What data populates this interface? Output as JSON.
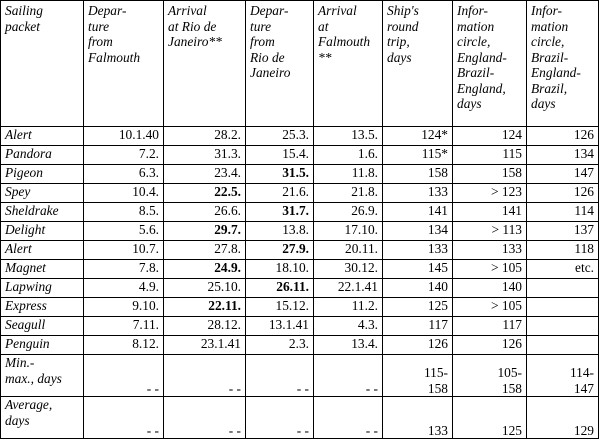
{
  "headers": [
    "Sailing packet",
    "Depar-ture from Falmouth",
    "Arrival at Rio de Janeiro**",
    "Depar-ture from Rio de Janeiro",
    "Arrival at Falmouth **",
    "Ship's round trip, days",
    "Infor-mation circle, England-Brazil-England, days",
    "Infor-mation circle, Brazil-England-Brazil, days"
  ],
  "header_lines": [
    [
      "Sailing",
      "packet"
    ],
    [
      "Depar-",
      "ture",
      "from",
      "Falmouth"
    ],
    [
      "Arrival",
      "at Rio de",
      "Janeiro**"
    ],
    [
      "Depar-",
      "ture",
      "from",
      "Rio de",
      "Janeiro"
    ],
    [
      "Arrival",
      "at",
      "Falmouth",
      "**"
    ],
    [
      "Ship's",
      "round",
      "trip,",
      "days"
    ],
    [
      "Infor-",
      "mation",
      "circle,",
      "England-",
      "Brazil-",
      "England,",
      "days"
    ],
    [
      "Infor-",
      "mation",
      "circle,",
      "Brazil-",
      "England-",
      "Brazil,",
      "days"
    ]
  ],
  "rows": [
    {
      "packet": "Alert",
      "dep_falmouth": "10.1.40",
      "arr_rio": "28.2.",
      "arr_rio_bold": false,
      "dep_rio": "25.3.",
      "dep_rio_bold": false,
      "arr_falmouth": "13.5.",
      "round_trip": "124*",
      "circle_ebe": "124",
      "circle_beb": "126"
    },
    {
      "packet": "Pandora",
      "dep_falmouth": "7.2.",
      "arr_rio": "31.3.",
      "arr_rio_bold": false,
      "dep_rio": "15.4.",
      "dep_rio_bold": false,
      "arr_falmouth": "1.6.",
      "round_trip": "115*",
      "circle_ebe": "115",
      "circle_beb": "134"
    },
    {
      "packet": "Pigeon",
      "dep_falmouth": "6.3.",
      "arr_rio": "23.4.",
      "arr_rio_bold": false,
      "dep_rio": "31.5.",
      "dep_rio_bold": true,
      "arr_falmouth": "11.8.",
      "round_trip": "158",
      "circle_ebe": "158",
      "circle_beb": "147"
    },
    {
      "packet": "Spey",
      "dep_falmouth": "10.4.",
      "arr_rio": "22.5.",
      "arr_rio_bold": true,
      "dep_rio": "21.6.",
      "dep_rio_bold": false,
      "arr_falmouth": "21.8.",
      "round_trip": "133",
      "circle_ebe": "> 123",
      "circle_beb": "126"
    },
    {
      "packet": "Sheldrake",
      "dep_falmouth": "8.5.",
      "arr_rio": "26.6.",
      "arr_rio_bold": false,
      "dep_rio": "31.7.",
      "dep_rio_bold": true,
      "arr_falmouth": "26.9.",
      "round_trip": "141",
      "circle_ebe": "141",
      "circle_beb": "114"
    },
    {
      "packet": "Delight",
      "dep_falmouth": "5.6.",
      "arr_rio": "29.7.",
      "arr_rio_bold": true,
      "dep_rio": "13.8.",
      "dep_rio_bold": false,
      "arr_falmouth": "17.10.",
      "round_trip": "134",
      "circle_ebe": "> 113",
      "circle_beb": "137"
    },
    {
      "packet": "Alert",
      "dep_falmouth": "10.7.",
      "arr_rio": "27.8.",
      "arr_rio_bold": false,
      "dep_rio": "27.9.",
      "dep_rio_bold": true,
      "arr_falmouth": "20.11.",
      "round_trip": "133",
      "circle_ebe": "133",
      "circle_beb": "118"
    },
    {
      "packet": "Magnet",
      "dep_falmouth": "7.8.",
      "arr_rio": "24.9.",
      "arr_rio_bold": true,
      "dep_rio": "18.10.",
      "dep_rio_bold": false,
      "arr_falmouth": "30.12.",
      "round_trip": "145",
      "circle_ebe": "> 105",
      "circle_beb": "etc."
    },
    {
      "packet": "Lapwing",
      "dep_falmouth": "4.9.",
      "arr_rio": "25.10.",
      "arr_rio_bold": false,
      "dep_rio": "26.11.",
      "dep_rio_bold": true,
      "arr_falmouth": "22.1.41",
      "round_trip": "140",
      "circle_ebe": "140",
      "circle_beb": ""
    },
    {
      "packet": "Express",
      "dep_falmouth": "9.10.",
      "arr_rio": "22.11.",
      "arr_rio_bold": true,
      "dep_rio": "15.12.",
      "dep_rio_bold": false,
      "arr_falmouth": "11.2.",
      "round_trip": "125",
      "circle_ebe": "> 105",
      "circle_beb": ""
    },
    {
      "packet": "Seagull",
      "dep_falmouth": "7.11.",
      "arr_rio": "28.12.",
      "arr_rio_bold": false,
      "dep_rio": "13.1.41",
      "dep_rio_bold": false,
      "arr_falmouth": "4.3.",
      "round_trip": "117",
      "circle_ebe": "117",
      "circle_beb": ""
    },
    {
      "packet": "Penguin",
      "dep_falmouth": "8.12.",
      "arr_rio": "23.1.41",
      "arr_rio_bold": false,
      "dep_rio": "2.3.",
      "dep_rio_bold": false,
      "arr_falmouth": "13.4.",
      "round_trip": "126",
      "circle_ebe": "126",
      "circle_beb": ""
    }
  ],
  "summary": [
    {
      "label_lines": [
        "Min.-",
        "max., days"
      ],
      "dep_falmouth": "",
      "arr_rio": "- -",
      "dep_rio": "- -",
      "arr_falmouth": "- -",
      "round_trip_lines": [
        "115-",
        "158"
      ],
      "circle_ebe_lines": [
        "105-",
        "158"
      ],
      "circle_beb_lines": [
        "114-",
        "147"
      ],
      "lead": "- -"
    },
    {
      "label_lines": [
        "Average,",
        "days"
      ],
      "dep_falmouth": "",
      "arr_rio": "- -",
      "dep_rio": "- -",
      "arr_falmouth": "- -",
      "round_trip_lines": [
        "133"
      ],
      "circle_ebe_lines": [
        "125"
      ],
      "circle_beb_lines": [
        "129"
      ],
      "lead": "- -"
    }
  ]
}
